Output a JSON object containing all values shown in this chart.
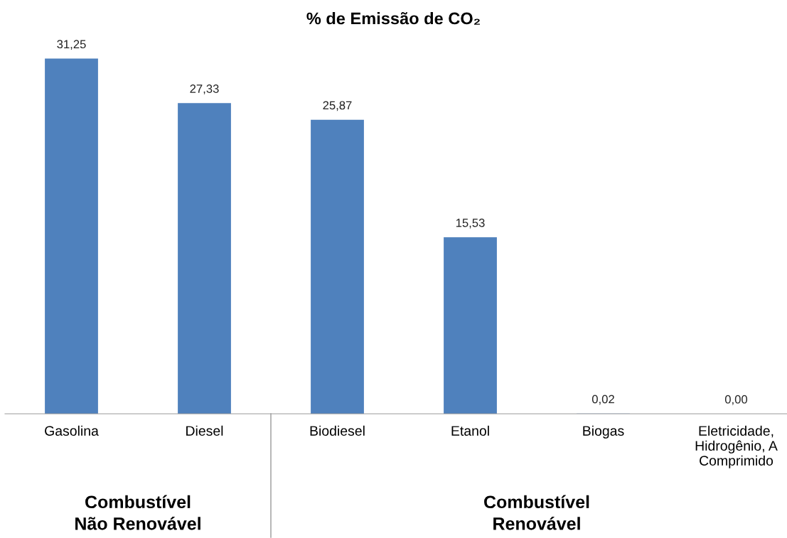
{
  "chart_data": {
    "type": "bar",
    "title": "% de Emissão de CO₂",
    "categories": [
      "Gasolina",
      "Diesel",
      "Biodiesel",
      "Etanol",
      "Biogas",
      "Eletricidade,\nHidrogênio, A\nComprimido"
    ],
    "values": [
      31.25,
      27.33,
      25.87,
      15.53,
      0.02,
      0.0
    ],
    "value_labels": [
      "31,25",
      "27,33",
      "25,87",
      "15,53",
      "0,02",
      "0,00"
    ],
    "color": "#4f81bd",
    "annotations": [
      "Combustível\nNão Renovável",
      "Combustível\nRenovável"
    ],
    "grid": false,
    "legend": false
  }
}
